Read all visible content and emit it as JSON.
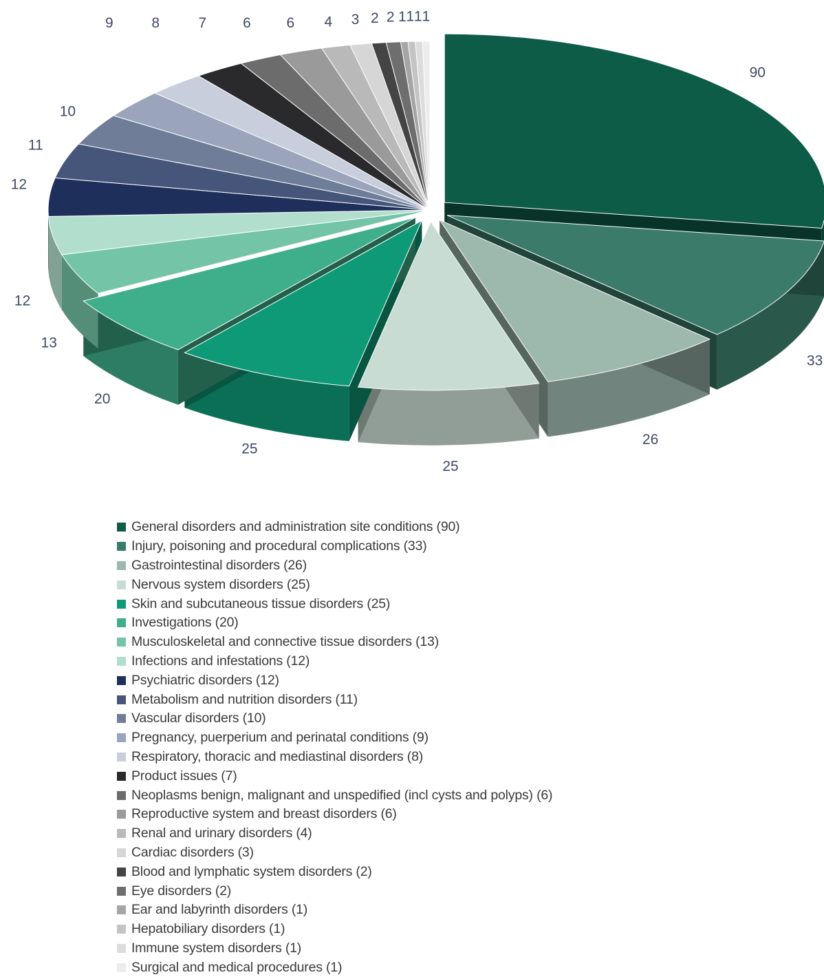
{
  "chart_data": {
    "type": "pie",
    "title": "",
    "legend_position": "bottom",
    "slices": [
      {
        "label": "General disorders and administration site conditions (90)",
        "value": 90,
        "value_label": "90",
        "color": "#0c5c48"
      },
      {
        "label": "Injury, poisoning and procedural complications (33)",
        "value": 33,
        "value_label": "33",
        "color": "#3b7b6a"
      },
      {
        "label": "Gastrointestinal disorders (26)",
        "value": 26,
        "value_label": "26",
        "color": "#9db8ad"
      },
      {
        "label": "Nervous system disorders (25)",
        "value": 25,
        "value_label": "25",
        "color": "#c9dcd3"
      },
      {
        "label": "Skin and subcutaneous tissue disorders (25)",
        "value": 25,
        "value_label": "25",
        "color": "#0e9a76"
      },
      {
        "label": "Investigations (20)",
        "value": 20,
        "value_label": "20",
        "color": "#3fae8b"
      },
      {
        "label": "Musculoskeletal and connective tissue disorders (13)",
        "value": 13,
        "value_label": "13",
        "color": "#74c4a7"
      },
      {
        "label": "Infections and infestations (12)",
        "value": 12,
        "value_label": "12",
        "color": "#b2dfcd"
      },
      {
        "label": "Psychiatric disorders (12)",
        "value": 12,
        "value_label": "12",
        "color": "#1f2f5c"
      },
      {
        "label": "Metabolism and nutrition disorders (11)",
        "value": 11,
        "value_label": "11",
        "color": "#45567a"
      },
      {
        "label": "Vascular disorders (10)",
        "value": 10,
        "value_label": "10",
        "color": "#6f7d99"
      },
      {
        "label": "Pregnancy, puerperium and perinatal conditions (9)",
        "value": 9,
        "value_label": "9",
        "color": "#9aa5bb"
      },
      {
        "label": "Respiratory, thoracic and mediastinal disorders (8)",
        "value": 8,
        "value_label": "8",
        "color": "#c8cedb"
      },
      {
        "label": "Product issues (7)",
        "value": 7,
        "value_label": "7",
        "color": "#2a2a2c"
      },
      {
        "label": "Neoplasms benign, malignant and unspedified (incl cysts and polyps) (6)",
        "value": 6,
        "value_label": "6",
        "color": "#6c6c6c"
      },
      {
        "label": "Reproductive system and breast disorders (6)",
        "value": 6,
        "value_label": "6",
        "color": "#9a9a9a"
      },
      {
        "label": "Renal and urinary disorders (4)",
        "value": 4,
        "value_label": "4",
        "color": "#b9b9b9"
      },
      {
        "label": "Cardiac disorders (3)",
        "value": 3,
        "value_label": "3",
        "color": "#d6d6d6"
      },
      {
        "label": "Blood and lymphatic system disorders (2)",
        "value": 2,
        "value_label": "2",
        "color": "#444444"
      },
      {
        "label": "Eye disorders (2)",
        "value": 2,
        "value_label": "2",
        "color": "#6e6e6e"
      },
      {
        "label": "Ear and labyrinth disorders (1)",
        "value": 1,
        "value_label": "1",
        "color": "#a5a5a5"
      },
      {
        "label": "Hepatobiliary disorders (1)",
        "value": 1,
        "value_label": "1",
        "color": "#c4c4c4"
      },
      {
        "label": "Immune system disorders (1)",
        "value": 1,
        "value_label": "1",
        "color": "#dcdcdc"
      },
      {
        "label": "Surgical and medical procedures (1)",
        "value": 1,
        "value_label": "1",
        "color": "#ececec"
      }
    ]
  }
}
